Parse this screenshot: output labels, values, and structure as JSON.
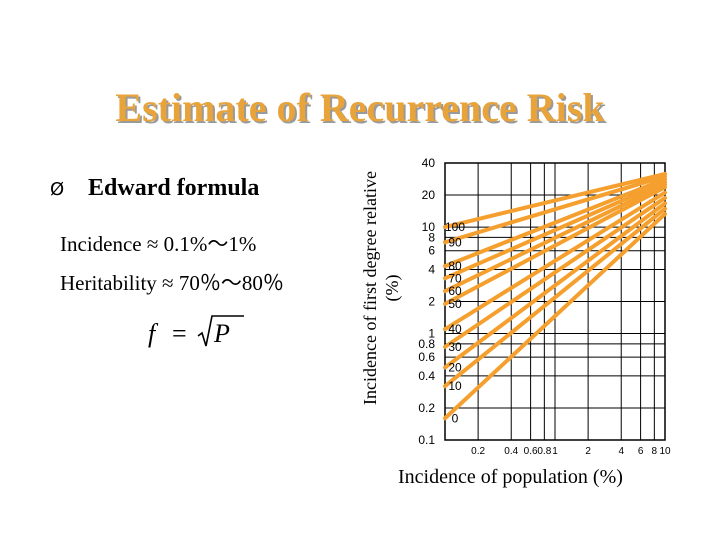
{
  "title": "Estimate of Recurrence Risk",
  "bullet": {
    "marker": "Ø",
    "label": "Edward formula"
  },
  "incidence_text": "Incidence ≈ 0.1%～1%",
  "heritability_text": "Heritability ≈ 70％～80％",
  "formula": {
    "lhs": "f",
    "equals": "=",
    "rhs": "P"
  },
  "accent_color": "#f5a02e",
  "chart_data": {
    "type": "line",
    "title": "",
    "xlabel": "Incidence of population (%)",
    "ylabel": "Incidence of first degree relative (%)",
    "x_scale": "log",
    "y_scale": "log",
    "xlim": [
      0.1,
      10
    ],
    "ylim": [
      0.1,
      40
    ],
    "x_ticks": [
      0.2,
      0.4,
      0.6,
      0.8,
      1,
      2,
      4,
      6,
      8,
      10
    ],
    "y_ticks": [
      40,
      20,
      10,
      8,
      6,
      4,
      2,
      1,
      0.8,
      0.6,
      0.4,
      0.2,
      0.1
    ],
    "grid": true,
    "line_labels": [
      "100",
      "90",
      "80",
      "70",
      "60",
      "50",
      "40",
      "30",
      "20",
      "10",
      "0"
    ],
    "series": [
      {
        "name": "100",
        "x": [
          0.1,
          10
        ],
        "y": [
          10.0,
          31.6
        ]
      },
      {
        "name": "90",
        "x": [
          0.1,
          10
        ],
        "y": [
          7.2,
          30.0
        ]
      },
      {
        "name": "80",
        "x": [
          0.1,
          10
        ],
        "y": [
          4.3,
          28.2
        ]
      },
      {
        "name": "70",
        "x": [
          0.1,
          10
        ],
        "y": [
          3.3,
          26.6
        ]
      },
      {
        "name": "60",
        "x": [
          0.1,
          10
        ],
        "y": [
          2.5,
          25.1
        ]
      },
      {
        "name": "50",
        "x": [
          0.1,
          10
        ],
        "y": [
          1.9,
          23.7
        ]
      },
      {
        "name": "40",
        "x": [
          0.1,
          10
        ],
        "y": [
          1.1,
          21.1
        ]
      },
      {
        "name": "30",
        "x": [
          0.1,
          10
        ],
        "y": [
          0.75,
          18.8
        ]
      },
      {
        "name": "20",
        "x": [
          0.1,
          10
        ],
        "y": [
          0.48,
          16.7
        ]
      },
      {
        "name": "10",
        "x": [
          0.1,
          10
        ],
        "y": [
          0.32,
          14.9
        ]
      },
      {
        "name": "0",
        "x": [
          0.1,
          10
        ],
        "y": [
          0.16,
          13.3
        ]
      }
    ]
  }
}
